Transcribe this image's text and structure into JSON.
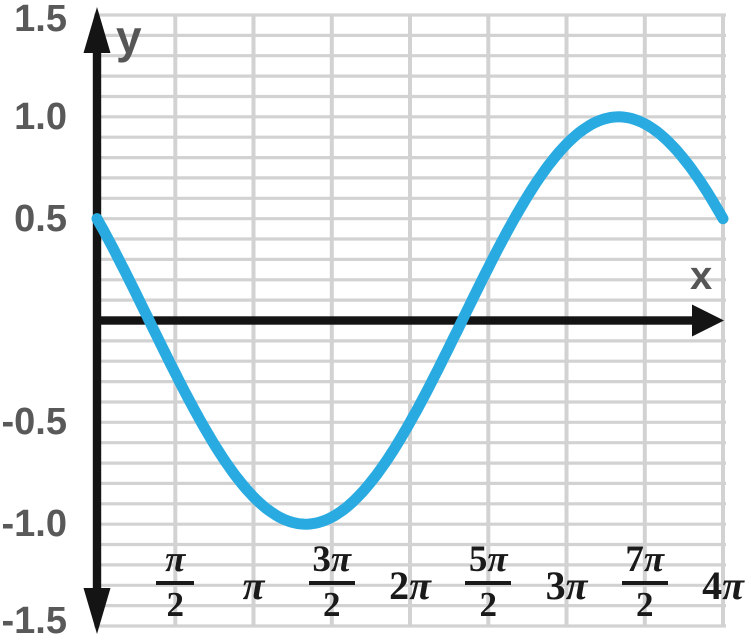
{
  "chart_data": {
    "type": "line",
    "title": "",
    "xlabel": "x",
    "ylabel": "y",
    "function": "y = sin(x/2 + 5π/6)",
    "equation_params": {
      "amplitude": 1,
      "x_coefficient": 0.5,
      "phase_over_pi": 0.8333333333
    },
    "x_domain_over_pi": [
      0,
      4
    ],
    "ylim": [
      -1.5,
      1.5
    ],
    "grid": {
      "on": true,
      "x_step_over_pi": 0.5,
      "y_step": 0.1,
      "color": "#D2D2D2"
    },
    "legend_position": "none",
    "curve_color": "#29ABE2",
    "axis_color": "#141414",
    "y_tick_label_color": "#595959",
    "x_tick_label_color": "#1A1A1A",
    "y_ticks": [
      {
        "label": "1.5",
        "value": 1.5
      },
      {
        "label": "1.0",
        "value": 1.0
      },
      {
        "label": "0.5",
        "value": 0.5
      },
      {
        "label": "-0.5",
        "value": -0.5
      },
      {
        "label": "-1.0",
        "value": -1.0
      },
      {
        "label": "-1.5",
        "value": -1.5
      }
    ],
    "x_ticks": [
      {
        "num": "π",
        "den": "2",
        "x_over_pi": 0.5
      },
      {
        "label": "π",
        "x_over_pi": 1
      },
      {
        "num": "3π",
        "den": "2",
        "x_over_pi": 1.5
      },
      {
        "label": "2π",
        "x_over_pi": 2
      },
      {
        "num": "5π",
        "den": "2",
        "x_over_pi": 2.5
      },
      {
        "label": "3π",
        "x_over_pi": 3
      },
      {
        "num": "7π",
        "den": "2",
        "x_over_pi": 3.5
      },
      {
        "label": "4π",
        "x_over_pi": 4
      }
    ],
    "samples": {
      "x_over_pi": [
        0,
        0.125,
        0.25,
        0.375,
        0.5,
        0.625,
        0.75,
        0.875,
        1,
        1.125,
        1.25,
        1.375,
        1.5,
        1.625,
        1.75,
        1.875,
        2,
        2.125,
        2.25,
        2.375,
        2.5,
        2.625,
        2.75,
        2.875,
        3,
        3.125,
        3.25,
        3.375,
        3.5,
        3.625,
        3.75,
        3.875,
        4
      ],
      "y": [
        0.5,
        0.321,
        0.131,
        -0.065,
        -0.259,
        -0.442,
        -0.609,
        -0.752,
        -0.866,
        -0.947,
        -0.991,
        -0.998,
        -0.966,
        -0.897,
        -0.793,
        -0.659,
        -0.5,
        -0.321,
        -0.131,
        0.065,
        0.259,
        0.442,
        0.609,
        0.752,
        0.866,
        0.947,
        0.991,
        0.998,
        0.966,
        0.897,
        0.793,
        0.659,
        0.5
      ]
    },
    "key_points": {
      "start": {
        "x_over_pi": 0,
        "y": 0.5
      },
      "first_zero_x_over_pi": 0.333,
      "minimum": {
        "x_over_pi": 1.333,
        "y": -1
      },
      "second_zero_x_over_pi": 2.333,
      "maximum": {
        "x_over_pi": 3.333,
        "y": 1
      },
      "end": {
        "x_over_pi": 4,
        "y": 0.5
      }
    }
  }
}
